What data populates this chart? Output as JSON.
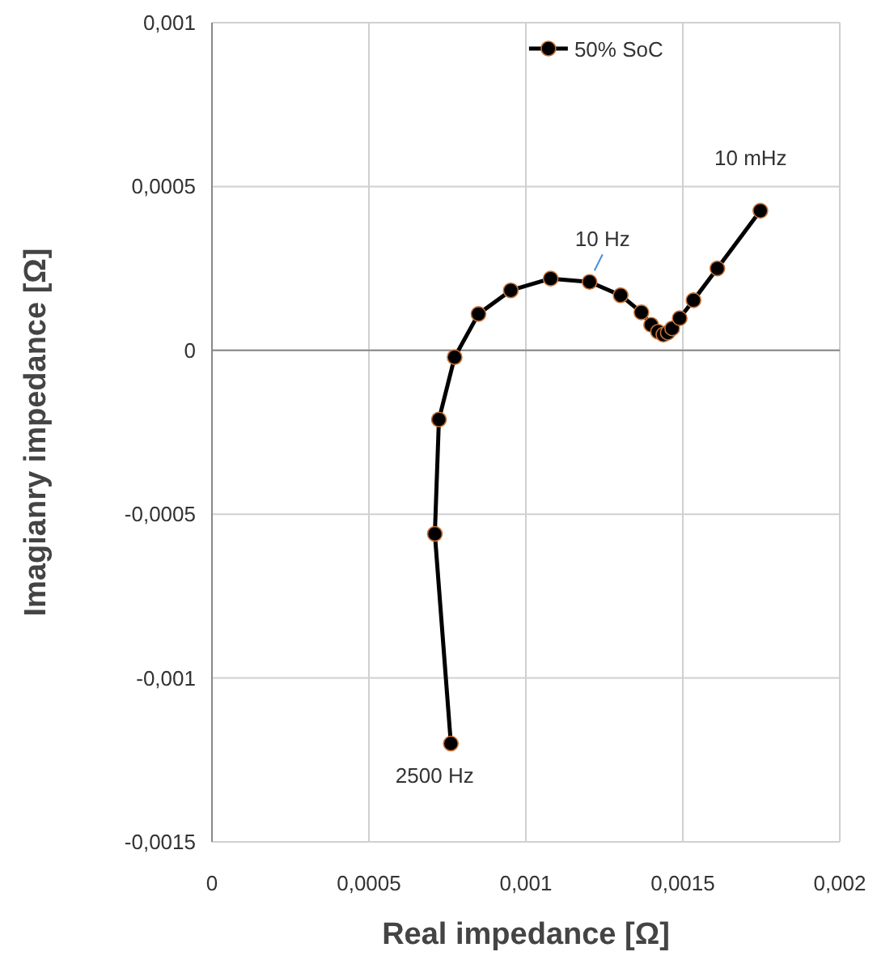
{
  "chart_data": {
    "type": "line",
    "xlabel": "Real impedance [Ω]",
    "ylabel": "Imagianry impedance [Ω]",
    "x": [
      0.000761,
      0.00071,
      0.000723,
      0.000773,
      0.000849,
      0.000952,
      0.001079,
      0.001203,
      0.001302,
      0.001368,
      0.001399,
      0.001421,
      0.001438,
      0.001452,
      0.001466,
      0.00149,
      0.001534,
      0.00161,
      0.001747
    ],
    "series": [
      {
        "name": "50% SoC",
        "color": "#000000",
        "values": [
          -0.0012,
          -0.00056,
          -0.000211,
          -2.1e-05,
          0.000111,
          0.000183,
          0.000219,
          0.000209,
          0.000168,
          0.000116,
          7.8e-05,
          5.7e-05,
          4.8e-05,
          5.4e-05,
          6.7e-05,
          9.8e-05,
          0.000153,
          0.00025,
          0.000426
        ]
      }
    ],
    "xlim": [
      0,
      0.002
    ],
    "ylim": [
      -0.0015,
      0.001
    ],
    "xticks": [
      {
        "value": 0,
        "label": "0"
      },
      {
        "value": 0.0005,
        "label": "0,0005"
      },
      {
        "value": 0.001,
        "label": "0,001"
      },
      {
        "value": 0.0015,
        "label": "0,0015"
      },
      {
        "value": 0.002,
        "label": "0,002"
      }
    ],
    "yticks": [
      {
        "value": -0.0015,
        "label": "-0,0015"
      },
      {
        "value": -0.001,
        "label": "-0,001"
      },
      {
        "value": -0.0005,
        "label": "-0,0005"
      },
      {
        "value": 0,
        "label": "0"
      },
      {
        "value": 0.0005,
        "label": "0,0005"
      },
      {
        "value": 0.001,
        "label": "0,001"
      }
    ],
    "grid": true,
    "legend": "top",
    "marker": "circle",
    "line_style": "solid",
    "annotations": [
      {
        "text": "10 Hz",
        "x": 0.001203,
        "y": 0.000209
      },
      {
        "text": "10 mHz",
        "x": 0.001747,
        "y": 0.000426
      },
      {
        "text": "2500 Hz",
        "x": 0.000761,
        "y": -0.0012
      }
    ]
  }
}
